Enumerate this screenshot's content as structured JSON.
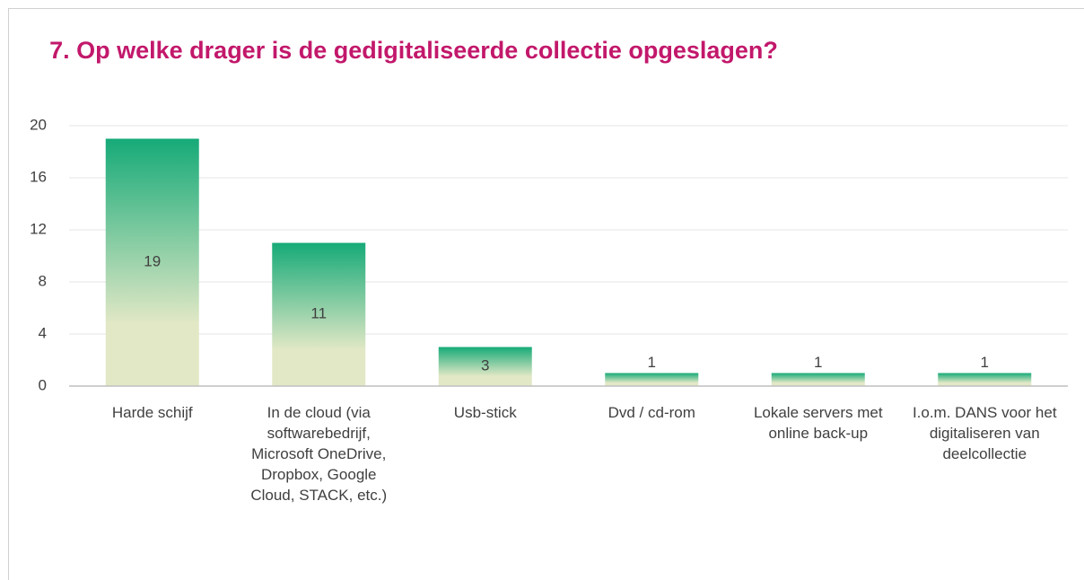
{
  "chart_data": {
    "type": "bar",
    "title": "7. Op welke drager is de gedigitaliseerde collectie opgeslagen?",
    "categories": [
      "Harde schijf",
      "In de cloud (via softwarebedrijf, Microsoft OneDrive, Dropbox, Google Cloud, STACK, etc.)",
      "Usb-stick",
      "Dvd / cd-rom",
      "Lokale servers met online back-up",
      "I.o.m. DANS voor het digitaliseren van deelcollectie"
    ],
    "values": [
      19,
      11,
      3,
      1,
      1,
      1
    ],
    "gradient": [
      "#16aa78",
      "#e2e8c6"
    ],
    "ylim": [
      0,
      20
    ],
    "yticks": [
      0,
      4,
      8,
      12,
      16,
      20
    ],
    "grid": true
  }
}
